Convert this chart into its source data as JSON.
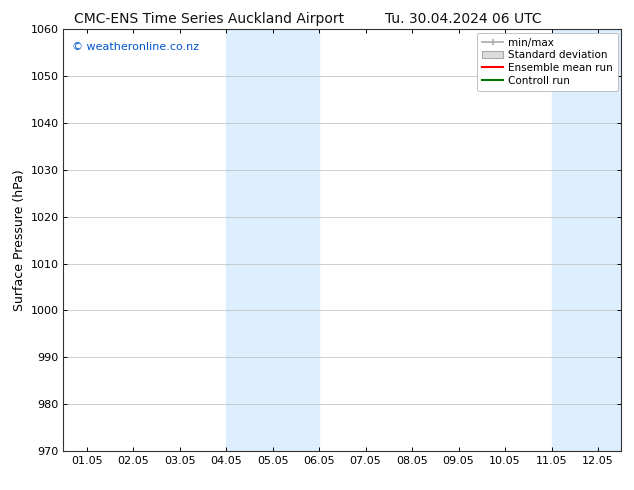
{
  "title_left": "CMC-ENS Time Series Auckland Airport",
  "title_right": "Tu. 30.04.2024 06 UTC",
  "ylabel": "Surface Pressure (hPa)",
  "ylim": [
    970,
    1060
  ],
  "yticks": [
    970,
    980,
    990,
    1000,
    1010,
    1020,
    1030,
    1040,
    1050,
    1060
  ],
  "xlabel_ticks": [
    "01.05",
    "02.05",
    "03.05",
    "04.05",
    "05.05",
    "06.05",
    "07.05",
    "08.05",
    "09.05",
    "10.05",
    "11.05",
    "12.05"
  ],
  "shaded_bands": [
    {
      "xstart": 4.0,
      "xend": 6.0
    },
    {
      "xstart": 11.0,
      "xend": 12.5
    }
  ],
  "shaded_color": "#ddeeff",
  "watermark": "© weatheronline.co.nz",
  "watermark_color": "#0055cc",
  "legend_items": [
    {
      "label": "min/max",
      "color": "#aaaaaa",
      "linestyle": "-"
    },
    {
      "label": "Standard deviation",
      "color": "#cccccc",
      "linestyle": "-"
    },
    {
      "label": "Ensemble mean run",
      "color": "#ff0000",
      "linestyle": "-"
    },
    {
      "label": "Controll run",
      "color": "#007700",
      "linestyle": "-"
    }
  ],
  "background_color": "#ffffff",
  "plot_bg_color": "#ffffff",
  "grid_color": "#bbbbbb",
  "title_fontsize": 10,
  "tick_fontsize": 8,
  "ylabel_fontsize": 9
}
